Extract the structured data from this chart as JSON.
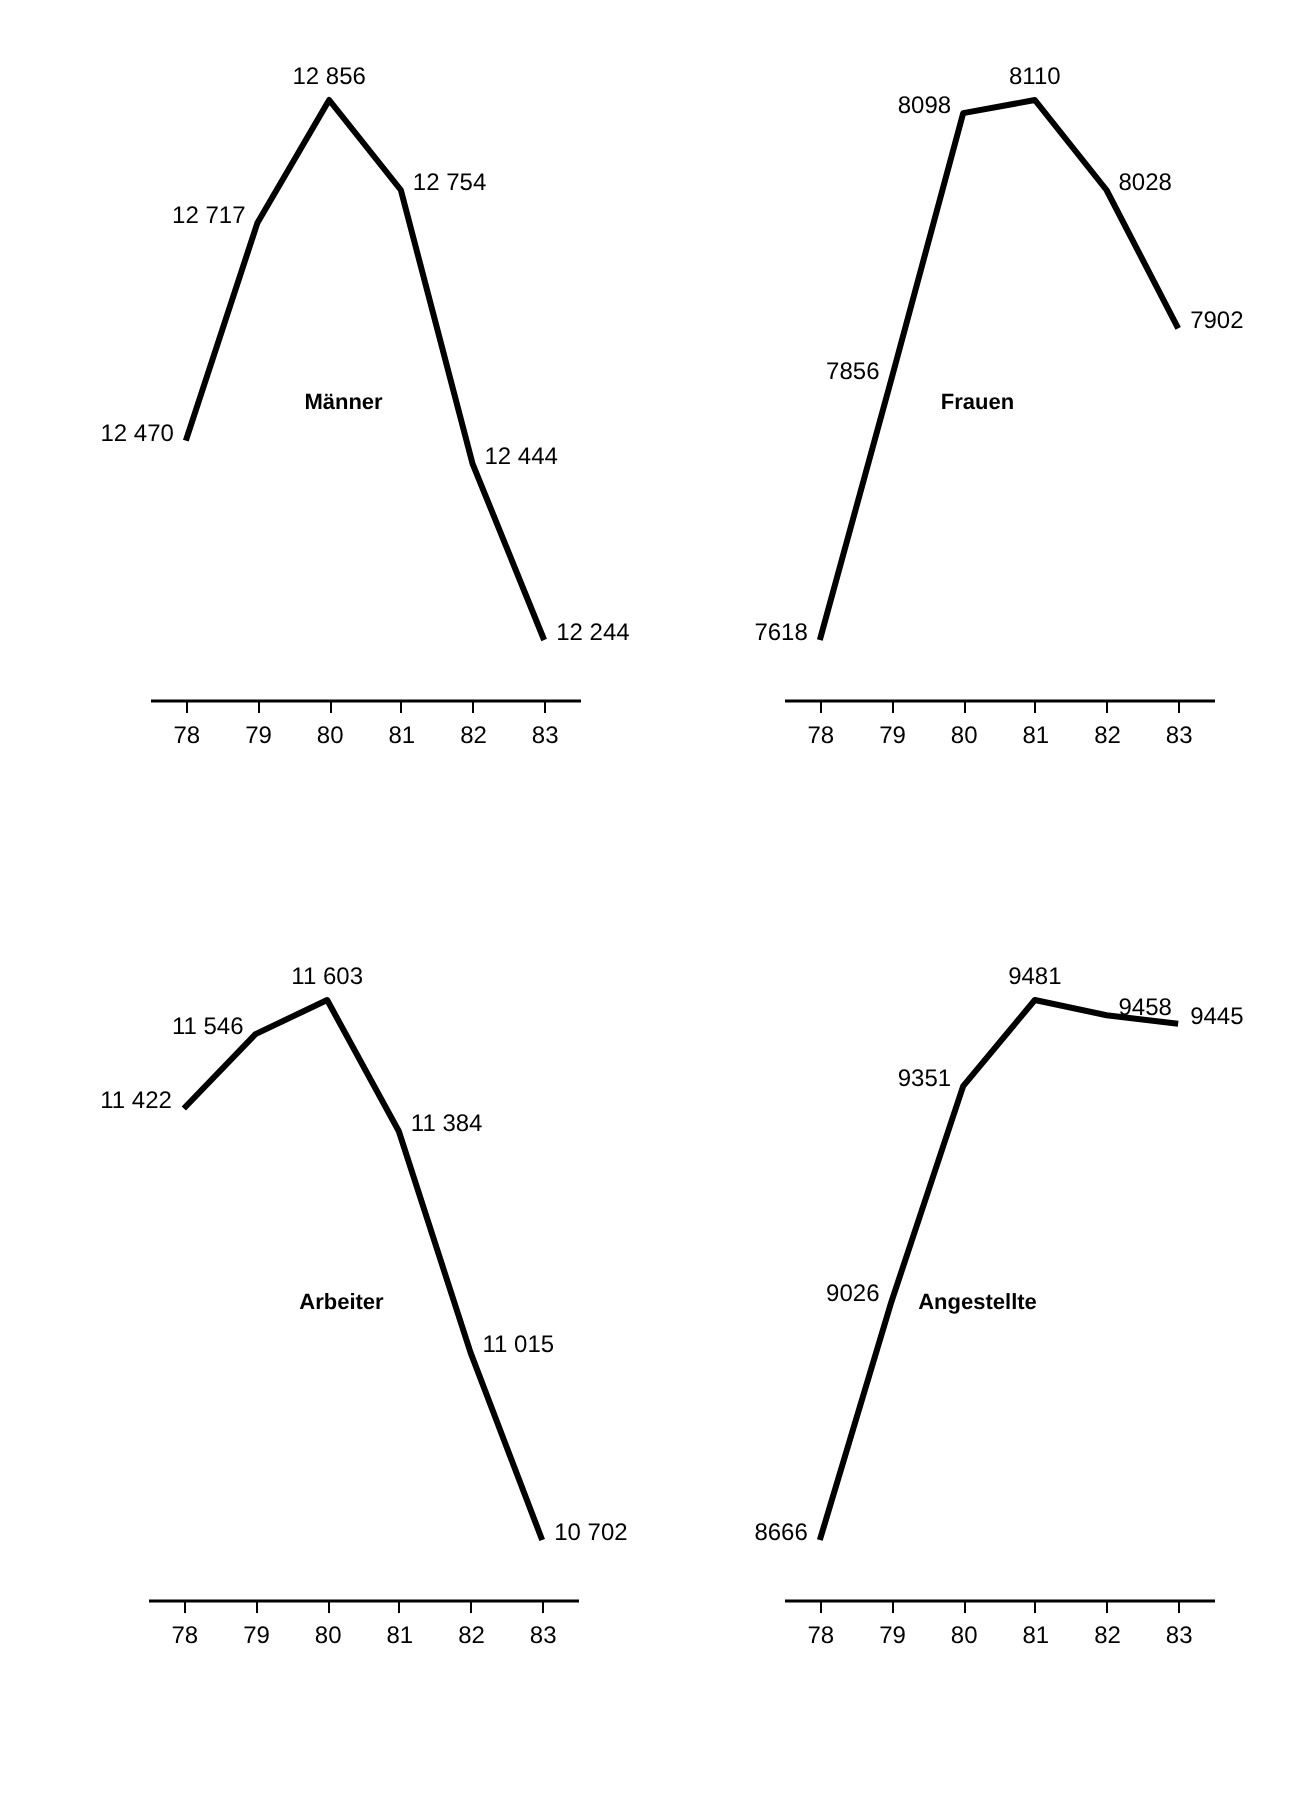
{
  "chart_data": [
    {
      "type": "line",
      "title": "Männer",
      "categories": [
        "78",
        "79",
        "80",
        "81",
        "82",
        "83"
      ],
      "values": [
        12470,
        12717,
        12856,
        12754,
        12444,
        12244
      ],
      "value_labels": [
        "12 470",
        "12 717",
        "12 856",
        "12 754",
        "12 444",
        "12 244"
      ],
      "color": "#000000",
      "tick_labels": "x"
    },
    {
      "type": "line",
      "title": "Frauen",
      "categories": [
        "78",
        "79",
        "80",
        "81",
        "82",
        "83"
      ],
      "values": [
        7618,
        7856,
        8098,
        8110,
        8028,
        7902
      ],
      "value_labels": [
        "7618",
        "7856",
        "8098",
        "8110",
        "8028",
        "7902"
      ],
      "color": "#000000",
      "tick_labels": "x"
    },
    {
      "type": "line",
      "title": "Arbeiter",
      "categories": [
        "78",
        "79",
        "80",
        "81",
        "82",
        "83"
      ],
      "values": [
        11422,
        11546,
        11603,
        11384,
        11015,
        10702
      ],
      "value_labels": [
        "11 422",
        "11 546",
        "11 603",
        "11 384",
        "11 015",
        "10 702"
      ],
      "color": "#000000",
      "tick_labels": "x"
    },
    {
      "type": "line",
      "title": "Angestellte",
      "categories": [
        "78",
        "79",
        "80",
        "81",
        "82",
        "83"
      ],
      "values": [
        8666,
        9026,
        9351,
        9481,
        9458,
        9445
      ],
      "value_labels": [
        "8666",
        "9026",
        "9351",
        "9481",
        "9458",
        "9445"
      ],
      "color": "#000000",
      "tick_labels": "x"
    }
  ]
}
